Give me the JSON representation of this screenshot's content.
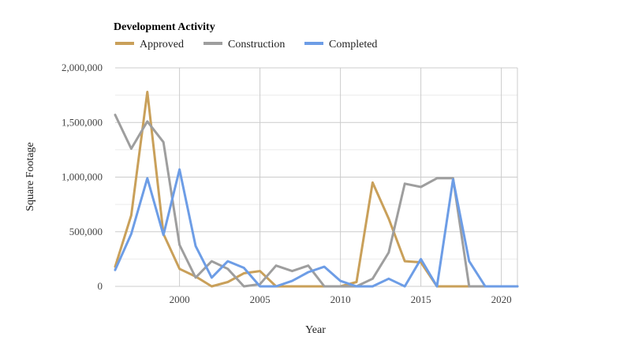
{
  "chart_data": {
    "type": "line",
    "title": "Development Activity",
    "xlabel": "Year",
    "ylabel": "Square Footage",
    "xlim": [
      1996,
      2021
    ],
    "ylim": [
      0,
      2000000
    ],
    "x_ticks": [
      2000,
      2005,
      2010,
      2015,
      2020
    ],
    "x_tick_labels": [
      "2000",
      "2005",
      "2010",
      "2015",
      "2020"
    ],
    "y_ticks": [
      0,
      500000,
      1000000,
      1500000,
      2000000
    ],
    "y_tick_labels": [
      "0",
      "500,000",
      "1,000,000",
      "1,500,000",
      "2,000,000"
    ],
    "grid": true,
    "legend_position": "top-left",
    "x": [
      1996,
      1997,
      1998,
      1999,
      2000,
      2001,
      2002,
      2003,
      2004,
      2005,
      2006,
      2007,
      2008,
      2009,
      2010,
      2011,
      2012,
      2013,
      2014,
      2015,
      2016,
      2017,
      2018,
      2019,
      2020,
      2021
    ],
    "series": [
      {
        "name": "Approved",
        "color": "#c9a05a",
        "values": [
          180000,
          650000,
          1780000,
          480000,
          160000,
          90000,
          0,
          40000,
          120000,
          140000,
          0,
          0,
          0,
          0,
          0,
          40000,
          950000,
          620000,
          230000,
          220000,
          0,
          0,
          0,
          0,
          0,
          0
        ]
      },
      {
        "name": "Construction",
        "color": "#9e9e9e",
        "values": [
          1570000,
          1260000,
          1510000,
          1320000,
          380000,
          80000,
          230000,
          160000,
          0,
          20000,
          190000,
          140000,
          190000,
          0,
          0,
          0,
          70000,
          310000,
          940000,
          910000,
          990000,
          990000,
          0,
          0,
          0,
          0
        ]
      },
      {
        "name": "Completed",
        "color": "#6d9de6",
        "values": [
          150000,
          480000,
          990000,
          470000,
          1070000,
          370000,
          80000,
          230000,
          170000,
          0,
          0,
          50000,
          130000,
          180000,
          50000,
          0,
          0,
          70000,
          0,
          250000,
          0,
          980000,
          230000,
          0,
          0,
          0
        ]
      }
    ]
  }
}
